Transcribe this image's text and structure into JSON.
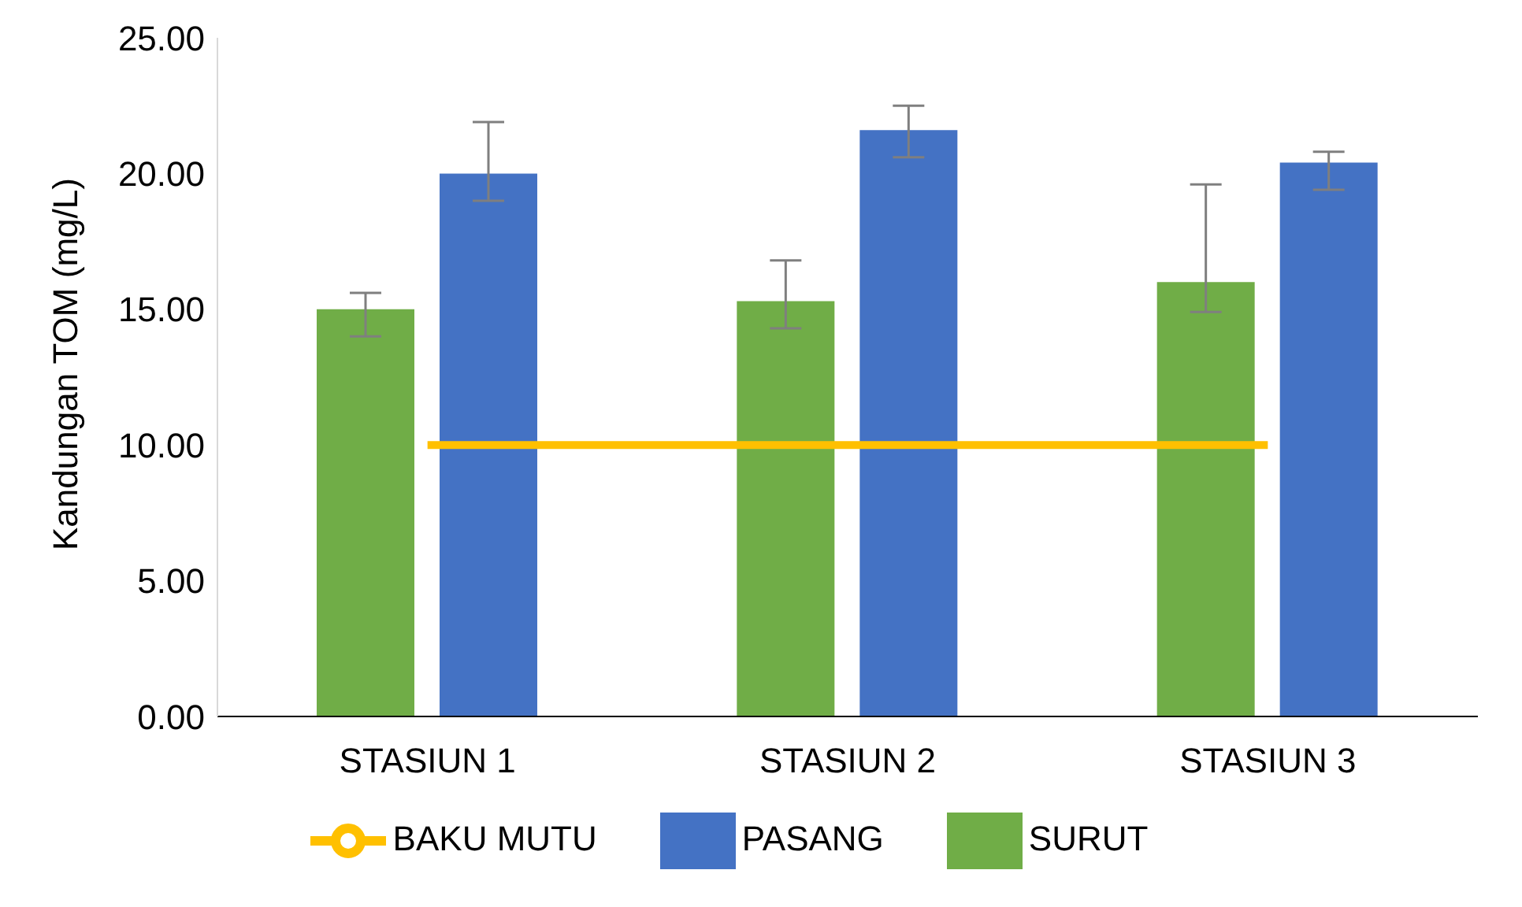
{
  "chart_data": {
    "type": "bar",
    "ylabel": "Kandungan TOM (mg/L)",
    "categories": [
      "STASIUN 1",
      "STASIUN 2",
      "STASIUN 3"
    ],
    "series": [
      {
        "name": "SURUT",
        "color": "#70ad47",
        "values": [
          15.0,
          15.3,
          16.0
        ],
        "errors": [
          [
            14.0,
            15.6
          ],
          [
            14.3,
            16.8
          ],
          [
            14.9,
            19.6
          ]
        ]
      },
      {
        "name": "PASANG",
        "color": "#4472c4",
        "values": [
          20.0,
          21.6,
          20.4
        ],
        "errors": [
          [
            19.0,
            21.9
          ],
          [
            20.6,
            22.5
          ],
          [
            19.4,
            20.8
          ]
        ]
      },
      {
        "name": "BAKU MUTU",
        "type": "line",
        "color": "#ffc000",
        "values": [
          10,
          10,
          10
        ]
      }
    ],
    "ylim": [
      0,
      25
    ],
    "yticks": [
      {
        "value": 0,
        "label": "0.00"
      },
      {
        "value": 5,
        "label": "5.00"
      },
      {
        "value": 10,
        "label": "10.00"
      },
      {
        "value": 15,
        "label": "15.00"
      },
      {
        "value": 20,
        "label": "20.00"
      },
      {
        "value": 25,
        "label": "25.00"
      }
    ],
    "grid": false,
    "legend": "bottom"
  }
}
